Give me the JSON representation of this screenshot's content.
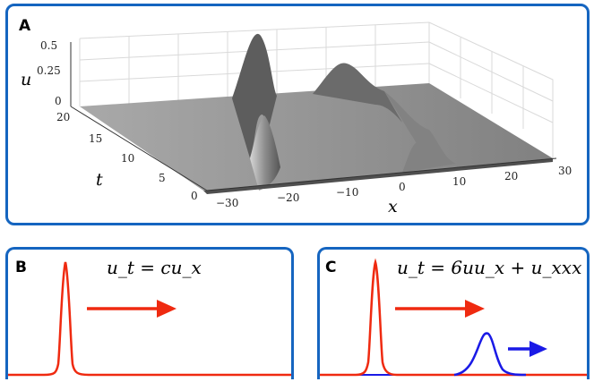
{
  "panels": {
    "a": {
      "letter": "A",
      "axes": {
        "u": {
          "label": "u",
          "ticks": [
            "0",
            "0.25",
            "0.5"
          ]
        },
        "t": {
          "label": "t",
          "ticks": [
            "0",
            "5",
            "10",
            "15",
            "20"
          ]
        },
        "x": {
          "label": "x",
          "ticks": [
            "−30",
            "−20",
            "−10",
            "0",
            "10",
            "20",
            "30"
          ]
        }
      },
      "surface_color": "#7a7a7a"
    },
    "b": {
      "letter": "B",
      "equation": "u_t = cu_x"
    },
    "c": {
      "letter": "C",
      "equation": "u_t = 6uu_x + u_xxx"
    }
  },
  "colors": {
    "border": "#1565c0",
    "red": "#ef2a10",
    "blue": "#1a1ae6"
  }
}
